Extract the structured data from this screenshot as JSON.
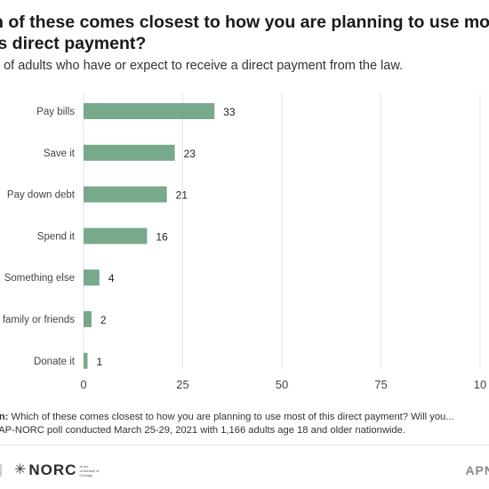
{
  "title": {
    "line1": "h of these comes closest to how you are planning to use mo",
    "line2": "is direct payment?"
  },
  "subtitle": "nt of adults who have or expect to receive a direct payment from the law.",
  "chart_data": {
    "type": "bar",
    "orientation": "horizontal",
    "categories": [
      "Pay bills",
      "Save it",
      "Pay down debt",
      "Spend it",
      "Something else",
      "family or friends",
      "Donate it"
    ],
    "values": [
      33,
      23,
      21,
      16,
      4,
      2,
      1
    ],
    "xlim": [
      0,
      100
    ],
    "xticks": [
      "0",
      "25",
      "50",
      "75",
      "10"
    ],
    "grid": "vertical",
    "bar_color": "#77a98a"
  },
  "footnotes": {
    "question_label": "on:",
    "question_text": " Which of these comes closest to how you are planning to use most of this direct payment? Will you...",
    "source_label": ":",
    "source_text": " AP-NORC poll conducted March 25-29, 2021 with 1,166 adults age 18 and older nationwide."
  },
  "footer": {
    "logo_text": "NORC",
    "logo_sub": "at the University of Chicago",
    "brand": "APN"
  }
}
